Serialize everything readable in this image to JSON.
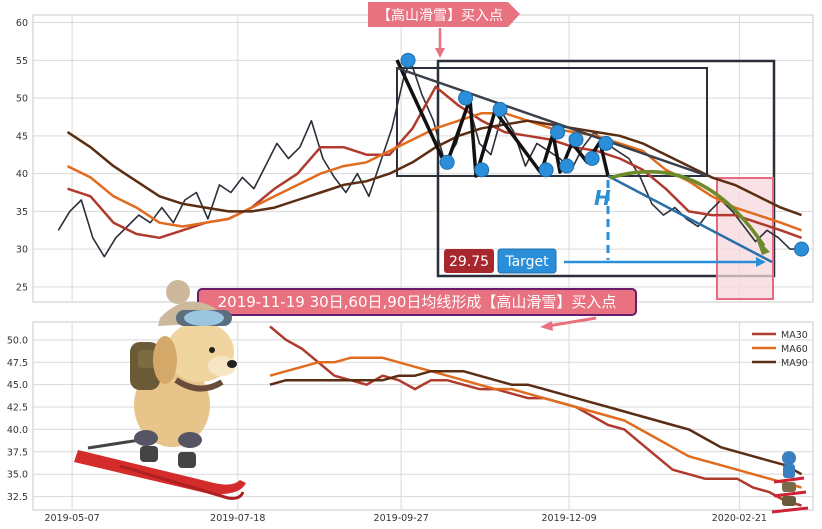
{
  "chart_data": [
    {
      "type": "line",
      "panel": "price",
      "ylim": [
        23,
        61
      ],
      "yticks": [
        25,
        30,
        35,
        40,
        45,
        50,
        55,
        60
      ],
      "xlim": [
        "2019-04-20",
        "2020-03-24"
      ],
      "series": [
        {
          "key": "close",
          "color": "#2b2f3a",
          "x": [
            "2019-05-01",
            "2019-05-06",
            "2019-05-11",
            "2019-05-16",
            "2019-05-21",
            "2019-05-26",
            "2019-05-31",
            "2019-06-05",
            "2019-06-10",
            "2019-06-15",
            "2019-06-20",
            "2019-06-25",
            "2019-06-30",
            "2019-07-05",
            "2019-07-10",
            "2019-07-15",
            "2019-07-20",
            "2019-07-25",
            "2019-07-30",
            "2019-08-04",
            "2019-08-09",
            "2019-08-14",
            "2019-08-19",
            "2019-08-24",
            "2019-08-29",
            "2019-09-03",
            "2019-09-08",
            "2019-09-13",
            "2019-09-18",
            "2019-09-23",
            "2019-09-28",
            "2019-10-01",
            "2019-10-06",
            "2019-10-11",
            "2019-10-16",
            "2019-10-21",
            "2019-10-26",
            "2019-10-31",
            "2019-11-05",
            "2019-11-10",
            "2019-11-15",
            "2019-11-20",
            "2019-11-25",
            "2019-11-30",
            "2019-12-05",
            "2019-12-10",
            "2019-12-15",
            "2019-12-20",
            "2019-12-25",
            "2019-12-30",
            "2020-01-04",
            "2020-01-09",
            "2020-01-14",
            "2020-01-19",
            "2020-01-24",
            "2020-01-29",
            "2020-02-03",
            "2020-02-08",
            "2020-02-13",
            "2020-02-18",
            "2020-02-23",
            "2020-02-28",
            "2020-03-04",
            "2020-03-09",
            "2020-03-14",
            "2020-03-19"
          ],
          "values": [
            32.5,
            35.0,
            36.5,
            31.5,
            29.0,
            31.5,
            33.0,
            34.5,
            33.5,
            35.5,
            33.5,
            36.5,
            37.5,
            34.0,
            38.5,
            37.5,
            39.5,
            38.0,
            41.0,
            44.0,
            42.0,
            43.5,
            47.0,
            42.0,
            39.5,
            37.5,
            40.0,
            37.0,
            41.5,
            46.0,
            52.5,
            55.0,
            50.5,
            47.0,
            41.5,
            44.0,
            49.5,
            44.0,
            42.5,
            48.0,
            45.5,
            41.0,
            44.0,
            43.0,
            42.0,
            40.5,
            43.5,
            45.5,
            44.0,
            43.0,
            42.0,
            39.5,
            36.0,
            34.5,
            35.5,
            34.0,
            33.0,
            35.0,
            36.5,
            35.0,
            33.0,
            31.0,
            32.5,
            31.5,
            30.0,
            30.0
          ]
        },
        {
          "key": "ma30",
          "color": "#b03a2e",
          "x": [
            "2019-05-05",
            "2019-05-15",
            "2019-05-25",
            "2019-06-04",
            "2019-06-14",
            "2019-06-24",
            "2019-07-04",
            "2019-07-14",
            "2019-07-24",
            "2019-08-03",
            "2019-08-13",
            "2019-08-23",
            "2019-09-02",
            "2019-09-12",
            "2019-09-22",
            "2019-10-02",
            "2019-10-12",
            "2019-10-22",
            "2019-11-01",
            "2019-11-11",
            "2019-11-21",
            "2019-12-01",
            "2019-12-11",
            "2019-12-21",
            "2019-12-31",
            "2020-01-10",
            "2020-01-20",
            "2020-01-30",
            "2020-02-09",
            "2020-02-19",
            "2020-02-29",
            "2020-03-10",
            "2020-03-19"
          ],
          "values": [
            38.0,
            37.0,
            33.5,
            32.0,
            31.5,
            32.5,
            33.5,
            34.0,
            35.5,
            38.0,
            40.0,
            43.5,
            43.5,
            42.5,
            42.5,
            46.0,
            51.5,
            49.0,
            47.0,
            45.5,
            45.0,
            44.5,
            43.5,
            43.0,
            42.0,
            40.5,
            38.0,
            35.0,
            34.5,
            34.5,
            33.5,
            32.5,
            31.5
          ]
        },
        {
          "key": "ma60",
          "color": "#e06c20",
          "x": [
            "2019-05-05",
            "2019-05-15",
            "2019-05-25",
            "2019-06-04",
            "2019-06-14",
            "2019-06-24",
            "2019-07-04",
            "2019-07-14",
            "2019-07-24",
            "2019-08-03",
            "2019-08-13",
            "2019-08-23",
            "2019-09-02",
            "2019-09-12",
            "2019-09-22",
            "2019-10-02",
            "2019-10-12",
            "2019-10-22",
            "2019-11-01",
            "2019-11-11",
            "2019-11-21",
            "2019-12-01",
            "2019-12-11",
            "2019-12-21",
            "2019-12-31",
            "2020-01-10",
            "2020-01-20",
            "2020-01-30",
            "2020-02-09",
            "2020-02-19",
            "2020-02-29",
            "2020-03-10",
            "2020-03-19"
          ],
          "values": [
            41.0,
            39.5,
            37.0,
            35.5,
            33.5,
            33.0,
            33.5,
            34.0,
            35.5,
            37.0,
            38.5,
            40.0,
            41.0,
            41.5,
            43.0,
            44.5,
            46.0,
            47.0,
            48.0,
            48.0,
            47.0,
            46.0,
            45.5,
            45.0,
            44.0,
            43.0,
            40.5,
            39.0,
            37.0,
            35.5,
            34.5,
            33.5,
            32.5
          ]
        },
        {
          "key": "ma90",
          "color": "#5b2d12",
          "x": [
            "2019-05-05",
            "2019-05-15",
            "2019-05-25",
            "2019-06-04",
            "2019-06-14",
            "2019-06-24",
            "2019-07-04",
            "2019-07-14",
            "2019-07-24",
            "2019-08-03",
            "2019-08-13",
            "2019-08-23",
            "2019-09-02",
            "2019-09-12",
            "2019-09-22",
            "2019-10-02",
            "2019-10-12",
            "2019-10-22",
            "2019-11-01",
            "2019-11-11",
            "2019-11-21",
            "2019-12-01",
            "2019-12-11",
            "2019-12-21",
            "2019-12-31",
            "2020-01-10",
            "2020-01-20",
            "2020-01-30",
            "2020-02-09",
            "2020-02-19",
            "2020-02-29",
            "2020-03-10",
            "2020-03-19"
          ],
          "values": [
            45.5,
            43.5,
            41.0,
            39.0,
            37.0,
            36.0,
            35.5,
            35.0,
            35.0,
            35.5,
            36.5,
            37.5,
            38.5,
            39.0,
            40.0,
            41.5,
            43.5,
            45.0,
            46.0,
            46.5,
            47.0,
            46.5,
            46.0,
            45.5,
            45.0,
            44.0,
            42.5,
            41.0,
            39.5,
            38.5,
            37.0,
            35.5,
            34.5
          ]
        }
      ],
      "markers": {
        "color": "#2a8fd8",
        "x": [
          "2019-09-30",
          "2019-10-17",
          "2019-10-25",
          "2019-11-01",
          "2019-11-09",
          "2019-11-29",
          "2019-12-04",
          "2019-12-08",
          "2019-12-12",
          "2019-12-19",
          "2019-12-25",
          "2020-03-19"
        ],
        "y": [
          55.0,
          41.5,
          50.0,
          40.5,
          48.5,
          40.5,
          45.5,
          41.0,
          44.5,
          42.0,
          44.0,
          30.0
        ]
      },
      "annotations": {
        "buy_label": "【高山滑雪】买入点",
        "price_badge": "29.75",
        "target_badge": "Target",
        "h_letter": "H"
      }
    },
    {
      "type": "line",
      "panel": "moving-averages",
      "ylim": [
        31,
        52
      ],
      "yticks": [
        32.5,
        35.0,
        37.5,
        40.0,
        42.5,
        45.0,
        47.5,
        50.0
      ],
      "xlim": [
        "2019-04-20",
        "2020-03-24"
      ],
      "xticks": [
        "2019-05-07",
        "2019-07-18",
        "2019-09-27",
        "2019-12-09",
        "2020-02-21"
      ],
      "legend_position": "top-right",
      "series": [
        {
          "name": "MA30",
          "color": "#b03a2e",
          "x": [
            "2019-08-01",
            "2019-08-08",
            "2019-08-15",
            "2019-08-22",
            "2019-08-29",
            "2019-09-05",
            "2019-09-12",
            "2019-09-19",
            "2019-09-26",
            "2019-10-03",
            "2019-10-10",
            "2019-10-17",
            "2019-10-24",
            "2019-10-31",
            "2019-11-07",
            "2019-11-14",
            "2019-11-21",
            "2019-11-28",
            "2019-12-05",
            "2019-12-12",
            "2019-12-19",
            "2019-12-26",
            "2020-01-02",
            "2020-01-09",
            "2020-01-16",
            "2020-01-23",
            "2020-01-30",
            "2020-02-06",
            "2020-02-13",
            "2020-02-20",
            "2020-02-27",
            "2020-03-05",
            "2020-03-12",
            "2020-03-19"
          ],
          "values": [
            51.5,
            50.0,
            49.0,
            47.5,
            46.0,
            45.5,
            45.0,
            46.0,
            45.5,
            44.5,
            45.5,
            45.5,
            45.0,
            44.5,
            44.5,
            44.0,
            43.5,
            43.5,
            43.0,
            42.5,
            41.5,
            40.5,
            40.0,
            38.5,
            37.0,
            35.5,
            35.0,
            34.5,
            34.5,
            34.5,
            33.5,
            33.0,
            32.0,
            31.5
          ]
        },
        {
          "name": "MA60",
          "color": "#e06c20",
          "x": [
            "2019-08-01",
            "2019-08-08",
            "2019-08-15",
            "2019-08-22",
            "2019-08-29",
            "2019-09-05",
            "2019-09-12",
            "2019-09-19",
            "2019-09-26",
            "2019-10-03",
            "2019-10-10",
            "2019-10-17",
            "2019-10-24",
            "2019-10-31",
            "2019-11-07",
            "2019-11-14",
            "2019-11-21",
            "2019-11-28",
            "2019-12-05",
            "2019-12-12",
            "2019-12-19",
            "2019-12-26",
            "2020-01-02",
            "2020-01-09",
            "2020-01-16",
            "2020-01-23",
            "2020-01-30",
            "2020-02-06",
            "2020-02-13",
            "2020-02-20",
            "2020-02-27",
            "2020-03-05",
            "2020-03-12",
            "2020-03-19"
          ],
          "values": [
            46.0,
            46.5,
            47.0,
            47.5,
            47.5,
            48.0,
            48.0,
            48.0,
            47.5,
            47.0,
            46.5,
            46.0,
            45.5,
            45.0,
            44.5,
            44.5,
            44.0,
            43.5,
            43.0,
            42.5,
            42.0,
            41.5,
            41.0,
            40.0,
            39.0,
            38.0,
            37.0,
            36.5,
            36.0,
            35.5,
            35.0,
            34.5,
            34.0,
            33.5
          ]
        },
        {
          "name": "MA90",
          "color": "#5b2d12",
          "x": [
            "2019-08-01",
            "2019-08-08",
            "2019-08-15",
            "2019-08-22",
            "2019-08-29",
            "2019-09-05",
            "2019-09-12",
            "2019-09-19",
            "2019-09-26",
            "2019-10-03",
            "2019-10-10",
            "2019-10-17",
            "2019-10-24",
            "2019-10-31",
            "2019-11-07",
            "2019-11-14",
            "2019-11-21",
            "2019-11-28",
            "2019-12-05",
            "2019-12-12",
            "2019-12-19",
            "2019-12-26",
            "2020-01-02",
            "2020-01-09",
            "2020-01-16",
            "2020-01-23",
            "2020-01-30",
            "2020-02-06",
            "2020-02-13",
            "2020-02-20",
            "2020-02-27",
            "2020-03-05",
            "2020-03-12",
            "2020-03-19"
          ],
          "values": [
            45.0,
            45.5,
            45.5,
            45.5,
            45.5,
            45.5,
            45.5,
            45.5,
            46.0,
            46.0,
            46.5,
            46.5,
            46.5,
            46.0,
            45.5,
            45.0,
            45.0,
            44.5,
            44.0,
            43.5,
            43.0,
            42.5,
            42.0,
            41.5,
            41.0,
            40.5,
            40.0,
            39.0,
            38.0,
            37.5,
            37.0,
            36.5,
            36.0,
            35.0
          ]
        }
      ],
      "annotations": {
        "signal_text": "2019-11-19 30日,60日,90日均线形成【高山滑雪】买入点"
      }
    }
  ],
  "colors": {
    "label_fill": "#e8727f",
    "label_text": "#ffffff",
    "signal_border": "#6a1c6c",
    "highlight_fill": "#f7d8de",
    "highlight_stroke": "#e86a82",
    "pattern_box": "#2b2f3a",
    "price_badge": "#a8272c",
    "target_badge": "#2a8fd8",
    "h_color": "#2a8fd8",
    "arc": "#6e8a2a"
  },
  "icons": {
    "dog": "skiing-dog-illustration",
    "mini": "mini-skier-icons"
  }
}
